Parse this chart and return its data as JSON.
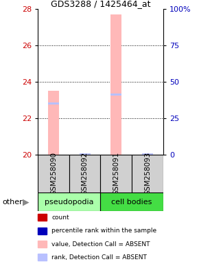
{
  "title": "GDS3288 / 1425464_at",
  "samples": [
    "GSM258090",
    "GSM258092",
    "GSM258091",
    "GSM258093"
  ],
  "groups": [
    "pseudopodia",
    "pseudopodia",
    "cell bodies",
    "cell bodies"
  ],
  "group_colors": {
    "pseudopodia": "#aaffaa",
    "cell bodies": "#44dd44"
  },
  "ylim": [
    20,
    28
  ],
  "y2lim": [
    0,
    100
  ],
  "yticks": [
    20,
    22,
    24,
    26,
    28
  ],
  "y2ticks": [
    0,
    25,
    50,
    75,
    100
  ],
  "y2ticklabels": [
    "0",
    "25",
    "50",
    "75",
    "100%"
  ],
  "bar_values": [
    23.5,
    20.0,
    27.7,
    20.0
  ],
  "rank_values": [
    22.8,
    20.0,
    23.3,
    20.0
  ],
  "bar_color_absent": "#ffb8b8",
  "rank_color_absent": "#b8c0ff",
  "bar_width": 0.35,
  "background_color": "#ffffff",
  "legend_items": [
    {
      "label": "count",
      "color": "#cc0000"
    },
    {
      "label": "percentile rank within the sample",
      "color": "#0000bb"
    },
    {
      "label": "value, Detection Call = ABSENT",
      "color": "#ffb8b8"
    },
    {
      "label": "rank, Detection Call = ABSENT",
      "color": "#b8c0ff"
    }
  ],
  "ylabel_color": "#cc0000",
  "y2label_color": "#0000bb",
  "sample_box_color": "#d0d0d0",
  "other_label": "other"
}
